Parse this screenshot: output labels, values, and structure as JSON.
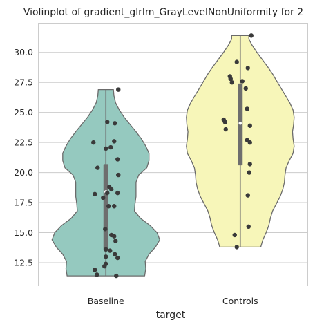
{
  "chart_data": {
    "type": "violin",
    "title": "Violinplot of gradient_glrlm_GrayLevelNonUniformity for 2",
    "xlabel": "target",
    "ylabel": "",
    "categories": [
      "Baseline",
      "Controls"
    ],
    "ylim": [
      10.6,
      32.4
    ],
    "yticks": [
      12.5,
      15.0,
      17.5,
      20.0,
      22.5,
      25.0,
      27.5,
      30.0
    ],
    "ytick_labels": [
      "12.5",
      "15.0",
      "17.5",
      "20.0",
      "22.5",
      "25.0",
      "27.5",
      "30.0"
    ],
    "grid": "horizontal",
    "colors": {
      "Baseline": "#95c9bf",
      "Controls": "#f7f6b9",
      "outline": "#6b6b6b",
      "box": "#6e6e6e",
      "points": "#3a3a3a"
    },
    "series": [
      {
        "name": "Baseline",
        "min": 11.4,
        "max": 26.9,
        "q1": 13.5,
        "median": 18.4,
        "q3": 20.7,
        "density": [
          [
            11.4,
            0.72
          ],
          [
            12.0,
            0.74
          ],
          [
            12.6,
            0.73
          ],
          [
            13.2,
            0.8
          ],
          [
            13.8,
            0.92
          ],
          [
            14.4,
            1.0
          ],
          [
            15.0,
            0.95
          ],
          [
            15.6,
            0.82
          ],
          [
            16.2,
            0.64
          ],
          [
            16.8,
            0.53
          ],
          [
            17.4,
            0.54
          ],
          [
            18.0,
            0.56
          ],
          [
            18.6,
            0.56
          ],
          [
            19.2,
            0.56
          ],
          [
            19.8,
            0.61
          ],
          [
            20.4,
            0.76
          ],
          [
            21.0,
            0.8
          ],
          [
            21.6,
            0.8
          ],
          [
            22.2,
            0.74
          ],
          [
            22.8,
            0.66
          ],
          [
            23.4,
            0.56
          ],
          [
            24.0,
            0.45
          ],
          [
            24.6,
            0.34
          ],
          [
            25.2,
            0.25
          ],
          [
            25.8,
            0.18
          ],
          [
            26.4,
            0.15
          ],
          [
            26.9,
            0.14
          ]
        ],
        "points": [
          [
            -0.16,
            11.9
          ],
          [
            -0.13,
            11.5
          ],
          [
            -0.02,
            12.2
          ],
          [
            0.0,
            12.4
          ],
          [
            0.15,
            11.4
          ],
          [
            0.0,
            13.0
          ],
          [
            0.13,
            13.2
          ],
          [
            0.17,
            12.9
          ],
          [
            0.0,
            13.6
          ],
          [
            0.06,
            13.5
          ],
          [
            -0.01,
            15.3
          ],
          [
            0.08,
            14.8
          ],
          [
            0.12,
            14.7
          ],
          [
            0.14,
            14.3
          ],
          [
            0.04,
            17.2
          ],
          [
            0.12,
            17.2
          ],
          [
            -0.04,
            17.9
          ],
          [
            -0.16,
            18.2
          ],
          [
            0.02,
            18.3
          ],
          [
            0.17,
            18.3
          ],
          [
            0.08,
            18.6
          ],
          [
            0.05,
            18.8
          ],
          [
            0.18,
            19.8
          ],
          [
            -0.12,
            20.4
          ],
          [
            0.17,
            21.1
          ],
          [
            0.0,
            22.0
          ],
          [
            0.07,
            22.1
          ],
          [
            -0.18,
            22.5
          ],
          [
            0.12,
            22.6
          ],
          [
            0.02,
            24.2
          ],
          [
            0.13,
            24.1
          ],
          [
            0.18,
            26.9
          ]
        ]
      },
      {
        "name": "Controls",
        "min": 13.8,
        "max": 31.4,
        "q1": 20.6,
        "median": 24.1,
        "q3": 27.4,
        "density": [
          [
            13.8,
            0.38
          ],
          [
            14.4,
            0.42
          ],
          [
            15.0,
            0.48
          ],
          [
            15.6,
            0.53
          ],
          [
            16.2,
            0.56
          ],
          [
            16.8,
            0.6
          ],
          [
            17.4,
            0.67
          ],
          [
            18.0,
            0.74
          ],
          [
            18.6,
            0.79
          ],
          [
            19.2,
            0.82
          ],
          [
            19.8,
            0.83
          ],
          [
            20.4,
            0.85
          ],
          [
            21.0,
            0.91
          ],
          [
            21.6,
            0.98
          ],
          [
            22.2,
            1.0
          ],
          [
            22.8,
            0.98
          ],
          [
            23.4,
            0.97
          ],
          [
            24.0,
            0.99
          ],
          [
            24.6,
            1.0
          ],
          [
            25.2,
            0.98
          ],
          [
            25.8,
            0.92
          ],
          [
            26.4,
            0.84
          ],
          [
            27.0,
            0.76
          ],
          [
            27.6,
            0.68
          ],
          [
            28.2,
            0.6
          ],
          [
            28.8,
            0.51
          ],
          [
            29.4,
            0.41
          ],
          [
            30.0,
            0.31
          ],
          [
            30.6,
            0.22
          ],
          [
            31.1,
            0.16
          ],
          [
            31.4,
            0.16
          ]
        ],
        "points": [
          [
            -0.05,
            13.8
          ],
          [
            -0.08,
            14.8
          ],
          [
            0.12,
            15.5
          ],
          [
            0.11,
            18.1
          ],
          [
            0.13,
            20.0
          ],
          [
            0.14,
            20.7
          ],
          [
            0.14,
            22.5
          ],
          [
            0.1,
            22.7
          ],
          [
            -0.21,
            23.6
          ],
          [
            0.14,
            23.9
          ],
          [
            -0.22,
            24.2
          ],
          [
            -0.24,
            24.4
          ],
          [
            0.1,
            25.3
          ],
          [
            0.08,
            27.0
          ],
          [
            -0.12,
            27.5
          ],
          [
            0.03,
            27.6
          ],
          [
            -0.14,
            27.8
          ],
          [
            -0.15,
            28.0
          ],
          [
            0.11,
            28.7
          ],
          [
            -0.05,
            29.2
          ],
          [
            0.16,
            31.4
          ]
        ]
      }
    ]
  }
}
